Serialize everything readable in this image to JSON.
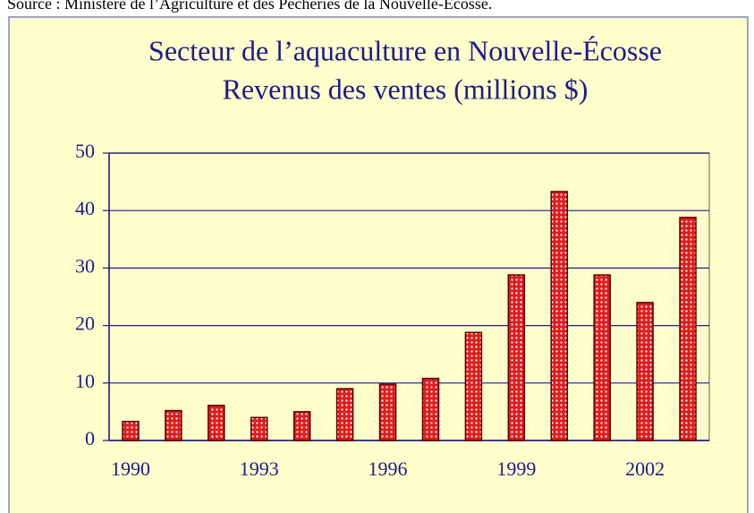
{
  "source": "Source : Ministère de l’Agriculture et des Pêcheries de la Nouvelle-Écosse.",
  "chart_data": {
    "type": "bar",
    "title": "Secteur de l’aquaculture en Nouvelle-Écosse",
    "subtitle": "Revenus des ventes (millions $)",
    "categories": [
      "1990",
      null,
      null,
      "1993",
      null,
      null,
      "1996",
      null,
      null,
      "1999",
      null,
      null,
      "2002",
      null
    ],
    "values": [
      3.3,
      5.2,
      6.1,
      4.0,
      5.0,
      9.0,
      9.8,
      10.8,
      18.8,
      28.8,
      43.3,
      28.8,
      24.0,
      38.8
    ],
    "color": "#e01e1e",
    "ylim": [
      0,
      50
    ],
    "yticks": [
      0,
      10,
      20,
      30,
      40,
      50
    ],
    "grid": true
  }
}
